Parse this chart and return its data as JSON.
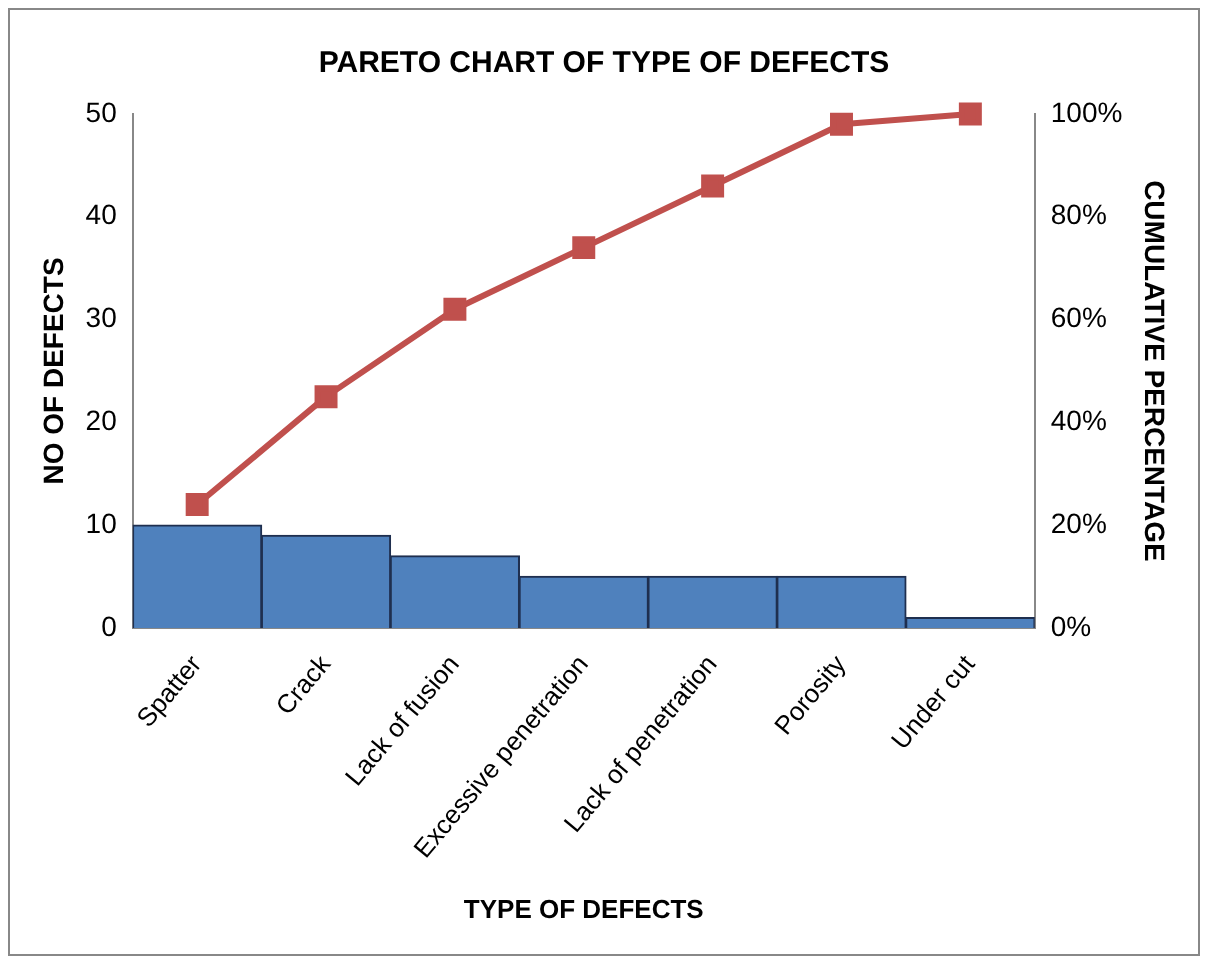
{
  "chart_data": {
    "type": "bar",
    "title": "PARETO CHART OF TYPE OF DEFECTS",
    "xlabel": "TYPE OF DEFECTS",
    "ylabel": "NO OF DEFECTS",
    "y2label": "CUMULATIVE PERCENTAGE",
    "categories": [
      "Spatter",
      "Crack",
      "Lack of fusion",
      "Excessive penetration",
      "Lack of penetration",
      "Porosity",
      "Under cut"
    ],
    "series": [
      {
        "color": "#4f81bd",
        "values": [
          10,
          9,
          7,
          5,
          5,
          5,
          1
        ]
      },
      {
        "type": "line",
        "axis": "y2",
        "color": "#c0504d",
        "values": [
          24,
          45,
          62,
          74,
          86,
          98,
          100
        ]
      }
    ],
    "ylim": [
      0,
      50
    ],
    "yticks": [
      0,
      10,
      20,
      30,
      40,
      50
    ],
    "y2lim": [
      0,
      100
    ],
    "y2ticks": [
      {
        "value": 0,
        "label": "0%"
      },
      {
        "value": 20,
        "label": "20%"
      },
      {
        "value": 40,
        "label": "40%"
      },
      {
        "value": 60,
        "label": "60%"
      },
      {
        "value": 80,
        "label": "80%"
      },
      {
        "value": 100,
        "label": "100%"
      }
    ],
    "grid": false,
    "legend": false,
    "marker": "square",
    "line_style": "solid"
  }
}
